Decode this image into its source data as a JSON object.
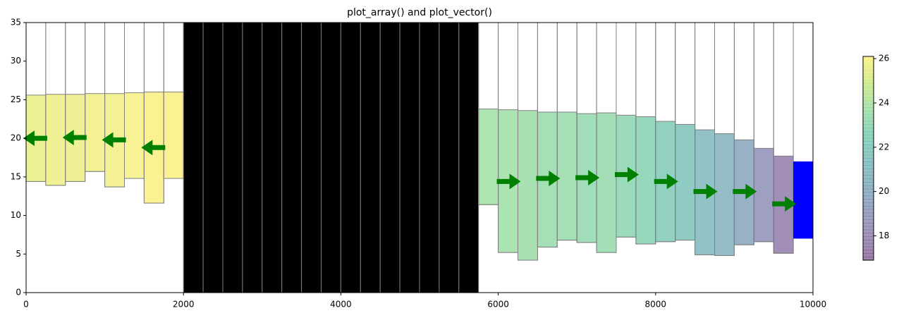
{
  "chart_data": {
    "type": "cross-section",
    "title": "plot_array() and plot_vector()",
    "x": [
      125,
      375,
      625,
      875,
      1125,
      1375,
      1625,
      1875,
      2125,
      2375,
      2625,
      2875,
      3125,
      3375,
      3625,
      3875,
      4125,
      4375,
      4625,
      4875,
      5125,
      5375,
      5625,
      5875,
      6125,
      6375,
      6625,
      6875,
      7125,
      7375,
      7625,
      7875,
      8125,
      8375,
      8625,
      8875,
      9125,
      9375,
      9625
    ],
    "top": [
      25.6,
      25.7,
      25.7,
      25.8,
      25.8,
      25.9,
      26.0,
      26.0,
      null,
      null,
      null,
      null,
      null,
      null,
      null,
      null,
      null,
      null,
      null,
      null,
      null,
      null,
      null,
      23.8,
      23.7,
      23.6,
      23.4,
      23.4,
      23.2,
      23.3,
      23.0,
      22.8,
      22.2,
      21.8,
      21.1,
      20.6,
      19.8,
      18.7,
      17.7
    ],
    "bottom": [
      14.4,
      13.9,
      14.4,
      15.7,
      13.7,
      14.8,
      11.6,
      14.8,
      null,
      null,
      null,
      null,
      null,
      null,
      null,
      null,
      null,
      null,
      null,
      null,
      null,
      null,
      null,
      11.4,
      5.2,
      4.2,
      5.9,
      6.8,
      6.5,
      5.2,
      7.2,
      6.3,
      6.6,
      6.8,
      4.9,
      4.8,
      6.2,
      6.6,
      5.1
    ],
    "inactive_color": "#000000",
    "constant_head": {
      "x": 9875,
      "top": 17,
      "bottom": 7,
      "color": "#0000ff"
    },
    "vectors": {
      "x": [
        125,
        625,
        1125,
        1625,
        6125,
        6625,
        7125,
        7625,
        8125,
        8625,
        9125,
        9625
      ],
      "y": [
        20.0,
        20.1,
        19.8,
        18.8,
        14.4,
        14.8,
        14.9,
        15.3,
        14.4,
        13.1,
        13.1,
        11.5
      ],
      "u": [
        -1,
        -1,
        -1,
        -1,
        1,
        1,
        1,
        1,
        1,
        1,
        1,
        1
      ],
      "color": "#008000"
    },
    "xlim": [
      0,
      10000
    ],
    "xticks": [
      0,
      2000,
      4000,
      6000,
      8000,
      10000
    ],
    "ylim": [
      0,
      35
    ],
    "yticks": [
      0,
      5,
      10,
      15,
      20,
      25,
      30,
      35
    ],
    "colormap": "viridis",
    "alpha": 0.5,
    "clim": [
      16.9,
      26.1
    ],
    "cticks": [
      18,
      20,
      22,
      24,
      26
    ]
  }
}
